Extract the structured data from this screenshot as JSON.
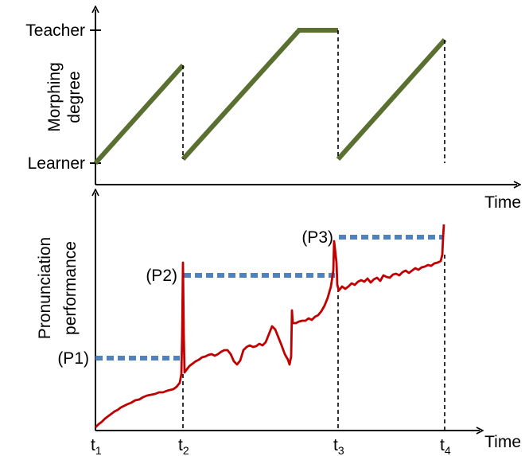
{
  "top_panel": {
    "y_label_line1": "Morphing",
    "y_label_line2": "degree",
    "y_tick_top": "Teacher",
    "y_tick_bottom": "Learner",
    "x_label": "Time",
    "line_color": "#5a7030"
  },
  "bottom_panel": {
    "y_label_line1": "Pronunciation",
    "y_label_line2": "performance",
    "x_label": "Time",
    "curve_color": "#c00000",
    "dash_color": "#4f81bd",
    "levels": [
      {
        "label": "(P1)"
      },
      {
        "label": "(P2)"
      },
      {
        "label": "(P3)"
      }
    ],
    "time_ticks": [
      {
        "base": "t",
        "sub": "1"
      },
      {
        "base": "t",
        "sub": "2"
      },
      {
        "base": "t",
        "sub": "3"
      },
      {
        "base": "t",
        "sub": "4"
      }
    ]
  }
}
